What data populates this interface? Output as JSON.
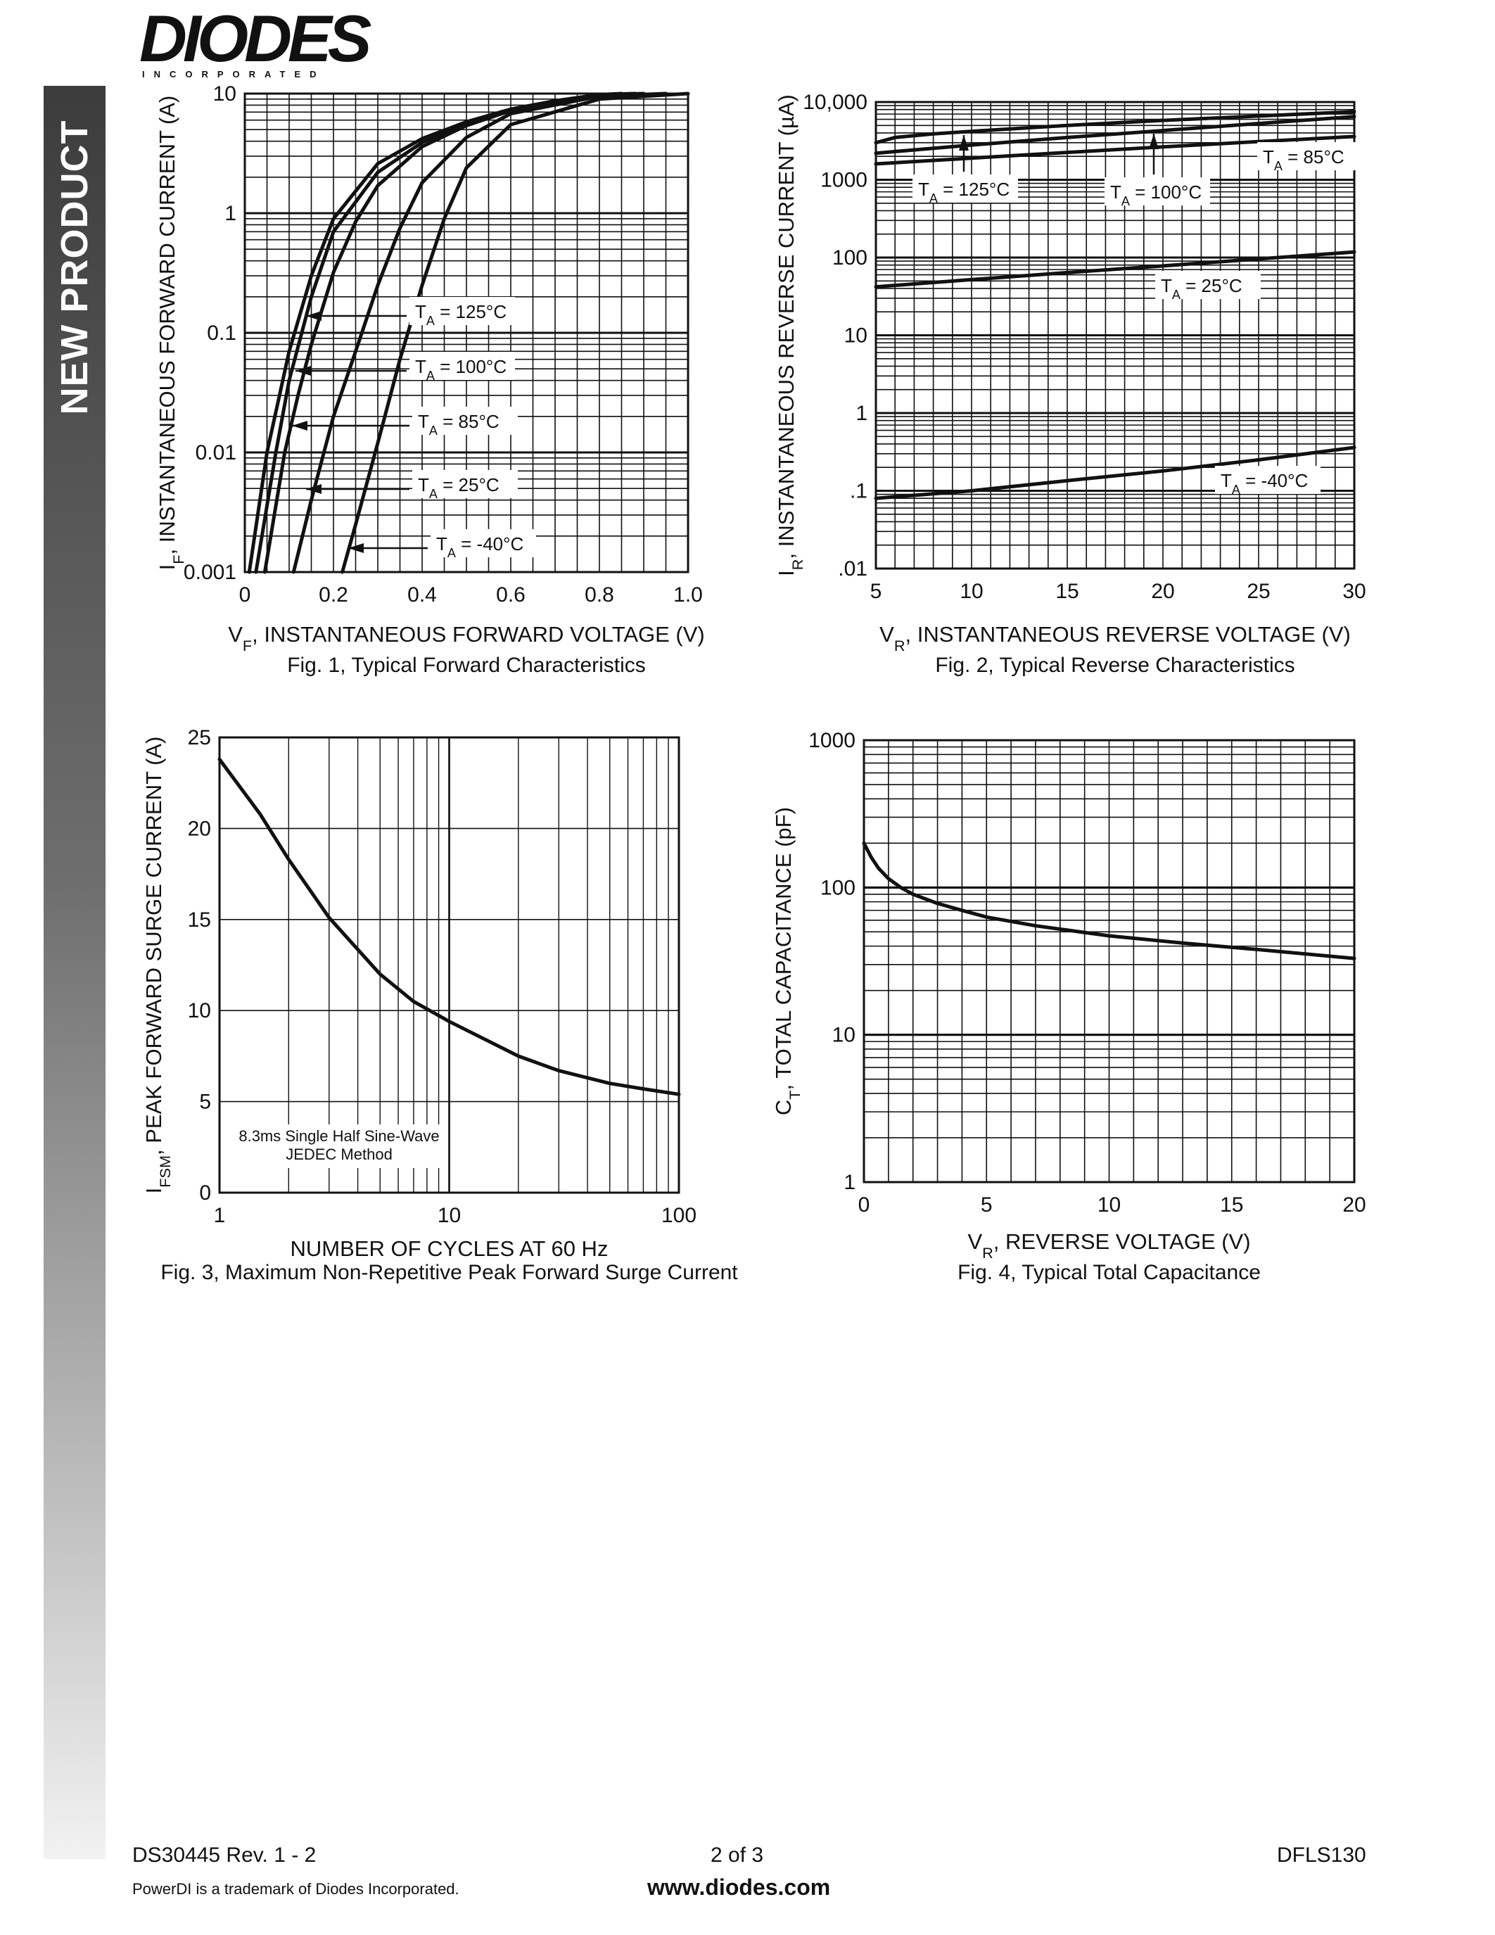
{
  "header": {
    "logo_text": "DIODES",
    "logo_subtext": "INCORPORATED",
    "sidebar_label": "NEW PRODUCT"
  },
  "footer": {
    "doc_rev": "DS30445 Rev. 1 - 2",
    "page": "2 of 3",
    "part": "DFLS130",
    "trademark": "PowerDI is a trademark of Diodes Incorporated.",
    "website": "www.diodes.com"
  },
  "chart_data": [
    {
      "id": "fig1",
      "type": "line",
      "caption": "Fig. 1, Typical Forward Characteristics",
      "xlabel": "VF, INSTANTANEOUS FORWARD VOLTAGE (V)",
      "ylabel": "IF, INSTANTANEOUS FORWARD CURRENT (A)",
      "x_scale": "linear",
      "y_scale": "log",
      "xlim": [
        0,
        1.0
      ],
      "ylim": [
        0.001,
        10
      ],
      "xticks": [
        0,
        0.2,
        0.4,
        0.6,
        0.8,
        1.0
      ],
      "xtick_labels": [
        "0",
        "0.2",
        "0.4",
        "0.6",
        "0.8",
        "1.0"
      ],
      "yticks": [
        0.001,
        0.01,
        0.1,
        1,
        10
      ],
      "ytick_labels": [
        "0.001",
        "0.01",
        "0.1",
        "1",
        "10"
      ],
      "series": [
        {
          "name": "TA = 125°C",
          "x": [
            0.01,
            0.05,
            0.1,
            0.15,
            0.2,
            0.3,
            0.4,
            0.5,
            0.6,
            0.7,
            0.8,
            0.85
          ],
          "y": [
            0.001,
            0.01,
            0.07,
            0.3,
            0.9,
            2.6,
            4.2,
            5.8,
            7.4,
            8.7,
            9.8,
            10
          ]
        },
        {
          "name": "TA = 100°C",
          "x": [
            0.025,
            0.07,
            0.1,
            0.15,
            0.2,
            0.3,
            0.4,
            0.5,
            0.6,
            0.7,
            0.8,
            0.88
          ],
          "y": [
            0.001,
            0.01,
            0.04,
            0.2,
            0.7,
            2.2,
            3.9,
            5.6,
            7.3,
            8.7,
            9.8,
            10
          ]
        },
        {
          "name": "TA = 85°C",
          "x": [
            0.045,
            0.09,
            0.12,
            0.15,
            0.2,
            0.25,
            0.3,
            0.4,
            0.5,
            0.6,
            0.8,
            0.9
          ],
          "y": [
            0.001,
            0.01,
            0.03,
            0.08,
            0.32,
            0.85,
            1.7,
            3.6,
            5.4,
            7.2,
            9.8,
            10
          ]
        },
        {
          "name": "TA = 25°C",
          "x": [
            0.11,
            0.15,
            0.2,
            0.25,
            0.3,
            0.35,
            0.4,
            0.5,
            0.6,
            0.8,
            0.95
          ],
          "y": [
            0.001,
            0.004,
            0.02,
            0.07,
            0.25,
            0.75,
            1.8,
            4.3,
            6.8,
            9.5,
            10
          ]
        },
        {
          "name": "TA = -40°C",
          "x": [
            0.22,
            0.25,
            0.3,
            0.35,
            0.4,
            0.45,
            0.5,
            0.6,
            0.8,
            1.0
          ],
          "y": [
            0.001,
            0.0025,
            0.012,
            0.06,
            0.25,
            0.9,
            2.4,
            5.5,
            9.0,
            10
          ]
        }
      ]
    },
    {
      "id": "fig2",
      "type": "line",
      "caption": "Fig. 2, Typical Reverse Characteristics",
      "xlabel": "VR, INSTANTANEOUS REVERSE VOLTAGE (V)",
      "ylabel": "IR, INSTANTANEOUS REVERSE CURRENT (µA)",
      "x_scale": "linear",
      "y_scale": "log",
      "xlim": [
        5,
        30
      ],
      "ylim": [
        0.01,
        10000
      ],
      "xticks": [
        5,
        10,
        15,
        20,
        25,
        30
      ],
      "xtick_labels": [
        "5",
        "10",
        "15",
        "20",
        "25",
        "30"
      ],
      "yticks": [
        0.01,
        0.1,
        1,
        10,
        100,
        1000,
        10000
      ],
      "ytick_labels": [
        ".01",
        ".1",
        "1",
        "10",
        "100",
        "1000",
        "10,000"
      ],
      "series": [
        {
          "name": "TA = 125°C",
          "x": [
            5,
            6,
            8,
            10,
            15,
            20,
            25,
            30
          ],
          "y": [
            3000,
            3500,
            3900,
            4200,
            5000,
            5800,
            6600,
            7500
          ]
        },
        {
          "name": "TA = 100°C",
          "x": [
            5,
            10,
            15,
            20,
            25,
            30
          ],
          "y": [
            2200,
            2800,
            3500,
            4300,
            5300,
            6500
          ]
        },
        {
          "name": "TA = 85°C",
          "x": [
            5,
            10,
            15,
            20,
            25,
            30
          ],
          "y": [
            1600,
            1900,
            2250,
            2650,
            3100,
            3600
          ]
        },
        {
          "name": "TA = 25°C",
          "x": [
            5,
            10,
            15,
            20,
            25,
            30
          ],
          "y": [
            42,
            52,
            64,
            78,
            96,
            118
          ]
        },
        {
          "name": "TA = -40°C",
          "x": [
            5,
            10,
            15,
            20,
            25,
            30
          ],
          "y": [
            0.08,
            0.1,
            0.135,
            0.18,
            0.25,
            0.36
          ]
        }
      ]
    },
    {
      "id": "fig3",
      "type": "line",
      "caption": "Fig. 3, Maximum Non-Repetitive Peak Forward Surge Current",
      "xlabel": "NUMBER OF CYCLES AT 60 Hz",
      "ylabel": "IFSM, PEAK FORWARD SURGE CURRENT (A)",
      "annotation": [
        "8.3ms Single Half Sine-Wave",
        "JEDEC Method"
      ],
      "x_scale": "log",
      "y_scale": "linear",
      "xlim": [
        1,
        100
      ],
      "ylim": [
        0,
        25
      ],
      "xticks": [
        1,
        10,
        100
      ],
      "xtick_labels": [
        "1",
        "10",
        "100"
      ],
      "yticks": [
        0,
        5,
        10,
        15,
        20,
        25
      ],
      "ytick_labels": [
        "0",
        "5",
        "10",
        "15",
        "20",
        "25"
      ],
      "series": [
        {
          "name": "",
          "x": [
            1,
            1.5,
            2,
            3,
            5,
            7,
            10,
            20,
            30,
            50,
            70,
            100
          ],
          "y": [
            23.8,
            20.8,
            18.3,
            15.1,
            12.0,
            10.5,
            9.4,
            7.5,
            6.7,
            6.0,
            5.7,
            5.4
          ]
        }
      ]
    },
    {
      "id": "fig4",
      "type": "line",
      "caption": "Fig. 4, Typical Total Capacitance",
      "xlabel": "VR, REVERSE VOLTAGE (V)",
      "ylabel": "CT, TOTAL CAPACITANCE (pF)",
      "x_scale": "linear",
      "y_scale": "log",
      "xlim": [
        0,
        20
      ],
      "ylim": [
        1,
        1000
      ],
      "xticks": [
        0,
        5,
        10,
        15,
        20
      ],
      "xtick_labels": [
        "0",
        "5",
        "10",
        "15",
        "20"
      ],
      "yticks": [
        1,
        10,
        100,
        1000
      ],
      "ytick_labels": [
        "1",
        "10",
        "100",
        "1000"
      ],
      "series": [
        {
          "name": "",
          "x": [
            0,
            0.3,
            0.6,
            1,
            1.5,
            2,
            3,
            4,
            5,
            7,
            10,
            13,
            16,
            20
          ],
          "y": [
            200,
            160,
            135,
            115,
            100,
            90,
            78,
            70,
            63,
            55,
            47,
            42,
            38,
            33
          ]
        }
      ]
    }
  ]
}
